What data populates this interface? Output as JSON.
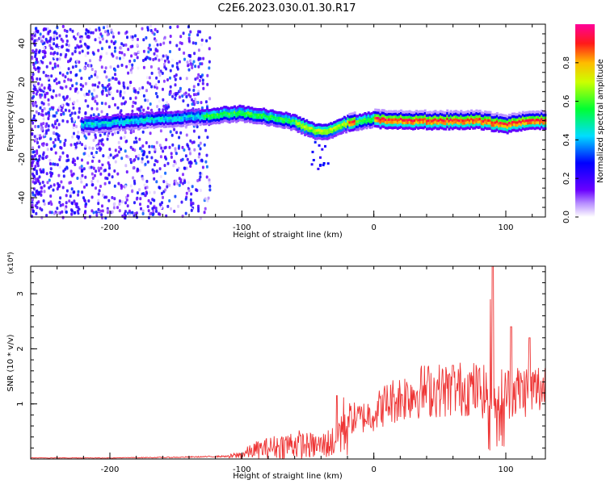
{
  "figure": {
    "title": "C2E6.2023.030.01.30.R17"
  },
  "chart_data": [
    {
      "type": "heatmap",
      "xlabel": "Height of straight line (km)",
      "ylabel": "Frequency (Hz)",
      "xlim": [
        -260,
        130
      ],
      "ylim": [
        -50,
        50
      ],
      "xticks": [
        -200,
        -100,
        0,
        100
      ],
      "yticks": [
        -40,
        -20,
        0,
        20,
        40
      ],
      "grid": false,
      "colorbar": {
        "label": "Normalized spectral amplitude",
        "range": [
          0,
          1
        ],
        "ticks": [
          "0.0",
          "0.2",
          "0.4",
          "0.6",
          "0.8"
        ],
        "colormap": "rainbow (white-purple-blue-cyan-green-yellow-red-magenta)"
      },
      "ridge": {
        "description": "frequency of peak spectral amplitude vs height",
        "x": [
          -220,
          -200,
          -180,
          -160,
          -140,
          -120,
          -100,
          -90,
          -80,
          -70,
          -60,
          -50,
          -45,
          -40,
          -35,
          -30,
          -20,
          -10,
          0,
          10,
          20,
          40,
          60,
          80,
          90,
          100,
          110,
          120,
          130
        ],
        "y": [
          -2,
          -1,
          0,
          1,
          2,
          3,
          4,
          3,
          2,
          1,
          -1,
          -4,
          -5,
          -6,
          -5,
          -4,
          -1,
          0,
          1,
          0,
          0,
          0,
          0,
          0,
          -1,
          -2,
          -1,
          0,
          0
        ]
      },
      "noise_region": {
        "x_range": [
          -260,
          -125
        ],
        "description": "scattered low-amplitude purple speckle"
      }
    },
    {
      "type": "line",
      "xlabel": "Height of straight line (km)",
      "ylabel": "SNR (10 * v/v)",
      "y_multiplier": "(x10⁴)",
      "xlim": [
        -260,
        130
      ],
      "ylim": [
        0,
        3.5
      ],
      "xticks": [
        -200,
        -100,
        0,
        100
      ],
      "yticks": [
        1,
        2,
        3
      ],
      "grid": false,
      "color": "#ee3333",
      "envelope": {
        "x": [
          -260,
          -200,
          -150,
          -110,
          -100,
          -90,
          -80,
          -70,
          -60,
          -50,
          -40,
          -30,
          -25,
          -20,
          -10,
          0,
          10,
          20,
          30,
          40,
          50,
          60,
          70,
          80,
          85,
          90,
          95,
          100,
          110,
          120,
          130
        ],
        "y": [
          0.02,
          0.02,
          0.03,
          0.05,
          0.1,
          0.2,
          0.25,
          0.3,
          0.35,
          0.3,
          0.3,
          0.4,
          0.7,
          0.8,
          0.8,
          0.9,
          1.1,
          1.2,
          1.3,
          1.35,
          1.35,
          1.35,
          1.4,
          1.35,
          1.3,
          1.3,
          1.3,
          1.3,
          1.35,
          1.35,
          1.4
        ]
      },
      "peaks": [
        {
          "x": 88,
          "y": 2.9
        },
        {
          "x": 90,
          "y": 3.5
        },
        {
          "x": 104,
          "y": 2.4
        },
        {
          "x": 118,
          "y": 2.2
        },
        {
          "x": -28,
          "y": 1.15
        },
        {
          "x": 60,
          "y": 1.7
        }
      ]
    }
  ]
}
